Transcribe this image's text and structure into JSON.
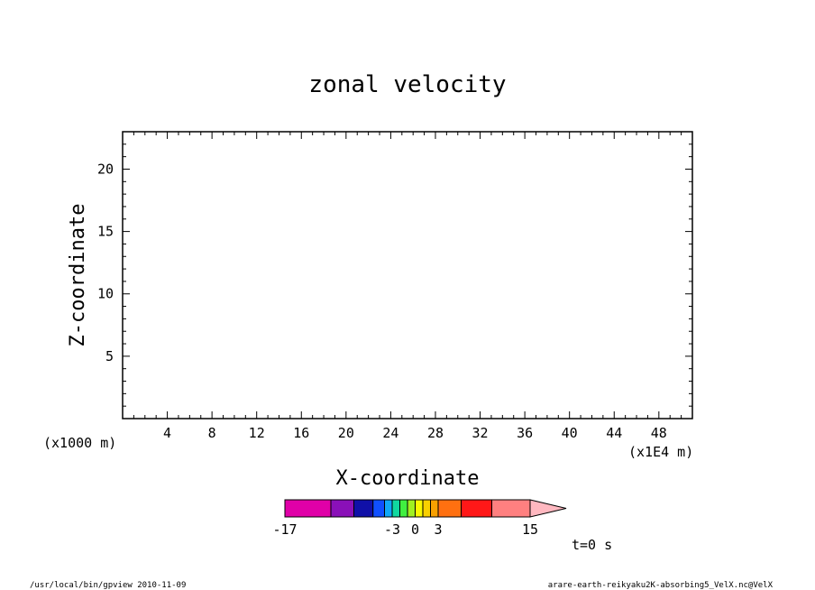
{
  "footer": {
    "left": "/usr/local/bin/gpview  2010-11-09",
    "right": "arare-earth-reikyaku2K-absorbing5_VelX.nc@VelX"
  },
  "chart_data": {
    "type": "heatmap",
    "title": "zonal velocity",
    "xlabel": "X-coordinate",
    "ylabel": "Z-coordinate",
    "x_unit_label": "(x1E4 m)",
    "y_unit_label": "(x1000 m)",
    "time_label": "t=0 s",
    "xlim": [
      0,
      51
    ],
    "ylim": [
      0,
      23
    ],
    "x_major_ticks": [
      4,
      8,
      12,
      16,
      20,
      24,
      28,
      32,
      36,
      40,
      44,
      48
    ],
    "x_minor_step": 1,
    "y_major_ticks": [
      5,
      10,
      15,
      20
    ],
    "y_minor_step": 1,
    "grid": false,
    "data": [],
    "colorbar": {
      "range": [
        -17,
        15
      ],
      "labels": [
        -17,
        -3,
        0,
        3,
        15
      ],
      "bins": [
        {
          "from": -17,
          "to": -11,
          "color": "#e000a8"
        },
        {
          "from": -11,
          "to": -8,
          "color": "#8a10b8"
        },
        {
          "from": -8,
          "to": -5.5,
          "color": "#1010a8"
        },
        {
          "from": -5.5,
          "to": -4,
          "color": "#1050ff"
        },
        {
          "from": -4,
          "to": -3,
          "color": "#10a8f8"
        },
        {
          "from": -3,
          "to": -2,
          "color": "#10d8a0"
        },
        {
          "from": -2,
          "to": -1,
          "color": "#40f040"
        },
        {
          "from": -1,
          "to": 0,
          "color": "#a0f020"
        },
        {
          "from": 0,
          "to": 1,
          "color": "#f8f800"
        },
        {
          "from": 1,
          "to": 2,
          "color": "#f8d000"
        },
        {
          "from": 2,
          "to": 3,
          "color": "#f8a000"
        },
        {
          "from": 3,
          "to": 6,
          "color": "#ff7010"
        },
        {
          "from": 6,
          "to": 10,
          "color": "#ff1818"
        },
        {
          "from": 10,
          "to": 15,
          "color": "#ff8080"
        }
      ],
      "overflow_color": "#ffb8c0"
    }
  }
}
